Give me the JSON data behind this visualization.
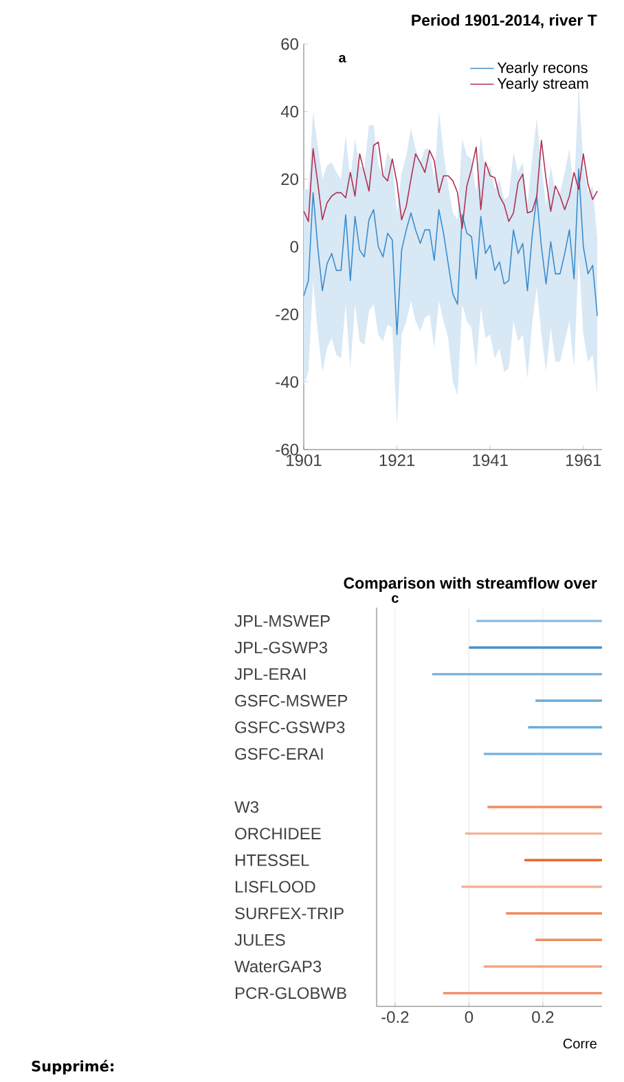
{
  "chart_data": [
    {
      "type": "line",
      "title": "Period 1901-2014, river T",
      "annotations": [
        "a"
      ],
      "x": [
        1901,
        1902,
        1903,
        1904,
        1905,
        1906,
        1907,
        1908,
        1909,
        1910,
        1911,
        1912,
        1913,
        1914,
        1915,
        1916,
        1917,
        1918,
        1919,
        1920,
        1921,
        1922,
        1923,
        1924,
        1925,
        1926,
        1927,
        1928,
        1929,
        1930,
        1931,
        1932,
        1933,
        1934,
        1935,
        1936,
        1937,
        1938,
        1939,
        1940,
        1941,
        1942,
        1943,
        1944,
        1945,
        1946,
        1947,
        1948,
        1949,
        1950,
        1951,
        1952,
        1953,
        1954,
        1955,
        1956,
        1957,
        1958,
        1959,
        1960,
        1961,
        1962,
        1963,
        1964
      ],
      "xlim": [
        1901,
        1965
      ],
      "xticks": [
        1901,
        1921,
        1941,
        1961
      ],
      "ylim": [
        -60,
        60
      ],
      "yticks": [
        -60,
        -40,
        -20,
        0,
        20,
        40,
        60
      ],
      "legend": "top right",
      "series": [
        {
          "name": "Yearly recons",
          "color": "#3a8ccc",
          "values": [
            -14.5,
            -10,
            16,
            0,
            -13,
            -5,
            -2,
            -7,
            -7,
            9.5,
            -10,
            9,
            -1,
            -3,
            8,
            11,
            0,
            -3,
            4,
            2,
            -26,
            -1,
            5,
            10,
            5,
            1,
            5,
            5,
            -4,
            11,
            4,
            -5,
            -14,
            -17,
            9.5,
            4,
            3,
            -9.5,
            9,
            -2,
            0.5,
            -7,
            -4.5,
            -11,
            -10,
            5,
            -2,
            1,
            -13,
            3,
            15,
            0,
            -11,
            1.5,
            -8,
            -8,
            -2,
            5,
            -9.5,
            23,
            0,
            -8,
            -5.5,
            -20.5
          ],
          "lower": [
            -41,
            -37,
            -10,
            -25,
            -37,
            -30,
            -27,
            -32,
            -33,
            -17,
            -36,
            -17,
            -28,
            -29,
            -19,
            -17,
            -26,
            -28,
            -23,
            -24,
            -53,
            -26,
            -22,
            -16,
            -22,
            -25,
            -21,
            -20,
            -30,
            -16,
            -22,
            -27,
            -40,
            -44,
            -17,
            -22,
            -24,
            -36,
            -18,
            -27,
            -26,
            -33,
            -30,
            -37,
            -36,
            -22,
            -28,
            -26,
            -39,
            -23,
            -12,
            -26,
            -37,
            -24,
            -34,
            -34,
            -28,
            -22,
            -36,
            -3,
            -26,
            -34,
            -32,
            -44
          ],
          "upper": [
            17,
            17,
            40,
            30,
            20,
            24,
            25,
            22,
            20,
            33,
            20,
            32,
            24,
            23,
            36,
            36,
            24,
            21,
            28,
            25,
            10,
            22,
            27,
            35,
            29,
            25,
            29,
            29,
            20,
            40,
            28,
            18,
            10,
            8,
            32,
            27,
            26,
            16,
            33,
            22,
            24,
            17,
            20,
            14,
            15,
            28,
            22,
            25,
            12,
            26,
            38,
            24,
            12,
            24,
            16,
            16,
            22,
            29,
            16,
            48,
            24,
            16,
            18,
            2
          ]
        },
        {
          "name": "Yearly stream",
          "color": "#b0304f",
          "values": [
            10.5,
            7.5,
            29,
            19,
            8,
            13,
            15,
            16,
            16,
            14.5,
            22,
            15,
            27.5,
            22,
            16.5,
            30,
            31,
            21,
            19.5,
            26,
            19,
            8,
            12,
            20,
            27.5,
            25,
            22,
            28.5,
            25.5,
            16,
            21,
            21,
            19.5,
            16,
            5.5,
            18,
            23,
            29.5,
            11,
            25,
            21,
            20.5,
            15,
            12.5,
            7.5,
            10,
            19,
            21.5,
            10,
            10.5,
            15,
            31.5,
            20,
            10.5,
            18,
            15,
            11,
            15,
            22,
            17,
            27.5,
            18.5,
            14,
            16.5
          ]
        }
      ]
    },
    {
      "type": "bar",
      "orientation": "horizontal",
      "title": "Comparison with streamflow over",
      "xlabel": "Corre",
      "annotations": [
        "c",
        "Supprimé:"
      ],
      "categories": [
        "JPL-MSWEP",
        "JPL-GSWP3",
        "JPL-ERAI",
        "GSFC-MSWEP",
        "GSFC-GSWP3",
        "GSFC-ERAI",
        null,
        "W3",
        "ORCHIDEE",
        "HTESSEL",
        "LISFLOOD",
        "SURFEX-TRIP",
        "JULES",
        "WaterGAP3",
        "PCR-GLOBWB"
      ],
      "base": [
        0.02,
        0.0,
        -0.1,
        0.18,
        0.16,
        0.04,
        null,
        0.05,
        -0.01,
        0.15,
        -0.02,
        0.1,
        0.18,
        0.04,
        -0.07
      ],
      "values": [
        0.34,
        0.36,
        0.46,
        0.18,
        0.2,
        0.32,
        null,
        0.31,
        0.37,
        0.21,
        0.38,
        0.26,
        0.18,
        0.32,
        0.43
      ],
      "colors": [
        "#8cc0e6",
        "#4a90cc",
        "#7ab6e3",
        "#6aacdc",
        "#6aacdc",
        "#7ab6e3",
        null,
        "#f08d60",
        "#f3b396",
        "#e8652e",
        "#f3b396",
        "#ef8a5c",
        "#f08d60",
        "#f3a582",
        "#f0936a"
      ],
      "xlim": [
        -0.25,
        0.36
      ],
      "xticks": [
        -0.2,
        0,
        0.2
      ],
      "grid": "x"
    }
  ]
}
